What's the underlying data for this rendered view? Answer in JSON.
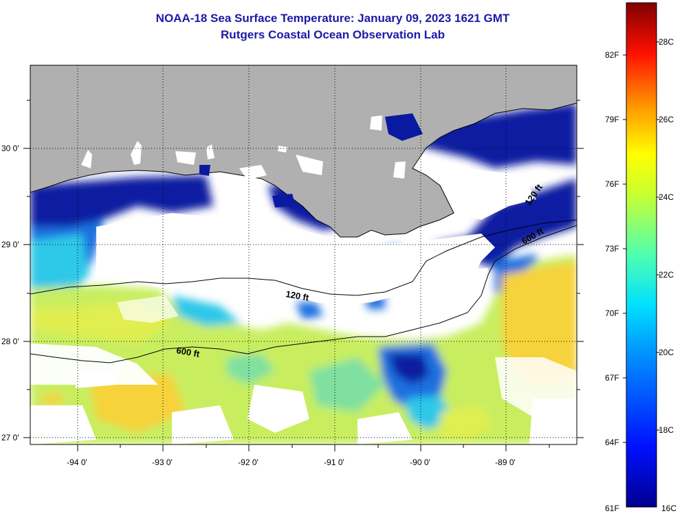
{
  "title": {
    "line1": "NOAA-18 Sea Surface Temperature:  January 09, 2023 1621 GMT",
    "line2": "Rutgers Coastal Ocean Observation Lab"
  },
  "map": {
    "lon_range": [
      -94.5,
      -88.0
    ],
    "lat_range": [
      26.95,
      30.85
    ],
    "lon_ticks": [
      {
        "value": -94,
        "label": "-94 0'"
      },
      {
        "value": -93,
        "label": "-93 0'"
      },
      {
        "value": -92,
        "label": "-92 0'"
      },
      {
        "value": -91,
        "label": "-91 0'"
      },
      {
        "value": -90,
        "label": "-90 0'"
      },
      {
        "value": -89,
        "label": "-89 0'"
      }
    ],
    "lat_ticks": [
      {
        "value": 30,
        "label": "30 0'"
      },
      {
        "value": 29,
        "label": "29 0'"
      },
      {
        "value": 28,
        "label": "28 0'"
      },
      {
        "value": 27,
        "label": "27 0'"
      }
    ],
    "contour_labels": {
      "c120_left": "120 ft",
      "c600_left": "600 ft",
      "c600_right": "600 ft",
      "c120_right": "120 ft"
    },
    "colors": {
      "land": "#b0b0b0",
      "cloud": "#ffffff",
      "very_cold": "#0a1aa0",
      "cold": "#1f6fe0",
      "cool": "#2fc8e8",
      "mild": "#7fe0a0",
      "warm": "#e0ee50",
      "warmer": "#f6d23a"
    }
  },
  "colorbar": {
    "fahrenheit": [
      "82F",
      "79F",
      "76F",
      "73F",
      "70F",
      "67F",
      "64F",
      "61F"
    ],
    "celsius": [
      "28C",
      "26C",
      "24C",
      "22C",
      "20C",
      "18C",
      "16C"
    ],
    "range_c": [
      16,
      29
    ]
  }
}
